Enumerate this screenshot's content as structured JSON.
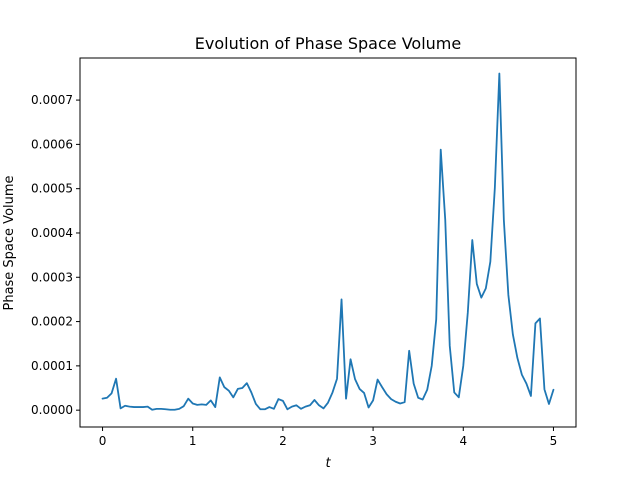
{
  "chart_data": {
    "type": "line",
    "title": "Evolution of Phase Space Volume",
    "xlabel": "t",
    "ylabel": "Phase Space Volume",
    "xlim": [
      -0.25,
      5.25
    ],
    "ylim": [
      -3.8e-05,
      0.000795
    ],
    "xticks": [
      0,
      1,
      2,
      3,
      4,
      5
    ],
    "xtick_labels": [
      "0",
      "1",
      "2",
      "3",
      "4",
      "5"
    ],
    "yticks": [
      0,
      0.0001,
      0.0002,
      0.0003,
      0.0004,
      0.0005,
      0.0006,
      0.0007
    ],
    "ytick_labels": [
      "0.0000",
      "0.0001",
      "0.0002",
      "0.0003",
      "0.0004",
      "0.0005",
      "0.0006",
      "0.0007"
    ],
    "grid": false,
    "legend": false,
    "series": [
      {
        "color": "#1f77b4",
        "x": [
          0,
          0.05,
          0.1,
          0.15,
          0.2,
          0.25,
          0.3,
          0.35,
          0.4,
          0.45,
          0.5,
          0.55,
          0.6,
          0.65,
          0.7,
          0.75,
          0.8,
          0.85,
          0.9,
          0.95,
          1.0,
          1.05,
          1.1,
          1.15,
          1.2,
          1.25,
          1.3,
          1.35,
          1.4,
          1.45,
          1.5,
          1.55,
          1.6,
          1.65,
          1.7,
          1.75,
          1.8,
          1.85,
          1.9,
          1.95,
          2.0,
          2.05,
          2.1,
          2.15,
          2.2,
          2.25,
          2.3,
          2.35,
          2.4,
          2.45,
          2.5,
          2.55,
          2.6,
          2.65,
          2.7,
          2.75,
          2.8,
          2.85,
          2.9,
          2.95,
          3.0,
          3.05,
          3.1,
          3.15,
          3.2,
          3.25,
          3.3,
          3.35,
          3.4,
          3.45,
          3.5,
          3.55,
          3.6,
          3.65,
          3.7,
          3.75,
          3.8,
          3.85,
          3.9,
          3.95,
          4.0,
          4.05,
          4.1,
          4.15,
          4.2,
          4.25,
          4.3,
          4.35,
          4.4,
          4.45,
          4.5,
          4.55,
          4.6,
          4.65,
          4.7,
          4.75,
          4.8,
          4.85,
          4.9,
          4.95,
          5.0
        ],
        "y": [
          2.6e-05,
          2.8e-05,
          3.8e-05,
          7.1e-05,
          4e-06,
          1e-05,
          8e-06,
          7e-06,
          7e-06,
          7e-06,
          8e-06,
          1e-06,
          3e-06,
          3e-06,
          2e-06,
          1e-06,
          1e-06,
          3e-06,
          9e-06,
          2.6e-05,
          1.5e-05,
          1.2e-05,
          1.3e-05,
          1.2e-05,
          2.2e-05,
          7e-06,
          7.4e-05,
          5.2e-05,
          4.4e-05,
          2.9e-05,
          4.8e-05,
          5e-05,
          6.1e-05,
          4e-05,
          1.4e-05,
          2e-06,
          2e-06,
          7e-06,
          3e-06,
          2.5e-05,
          2.1e-05,
          2e-06,
          8e-06,
          1.1e-05,
          3e-06,
          8e-06,
          1.1e-05,
          2.3e-05,
          1.1e-05,
          4e-06,
          1.7e-05,
          4e-05,
          7.1e-05,
          0.00025,
          2.6e-05,
          0.000115,
          7e-05,
          4.8e-05,
          3.9e-05,
          6e-06,
          2.2e-05,
          6.9e-05,
          5.2e-05,
          3.6e-05,
          2.5e-05,
          1.9e-05,
          1.5e-05,
          1.8e-05,
          0.000134,
          6e-05,
          2.8e-05,
          2.4e-05,
          4.6e-05,
          0.0001,
          0.000205,
          0.000588,
          0.00043,
          0.000145,
          4e-05,
          2.9e-05,
          0.0001,
          0.00022,
          0.000384,
          0.000285,
          0.000254,
          0.000275,
          0.000335,
          0.000502,
          0.00076,
          0.000429,
          0.00026,
          0.000171,
          0.000118,
          8e-05,
          6e-05,
          3.2e-05,
          0.000196,
          0.000207,
          4.7e-05,
          1.4e-05,
          4.6e-05
        ]
      }
    ]
  }
}
